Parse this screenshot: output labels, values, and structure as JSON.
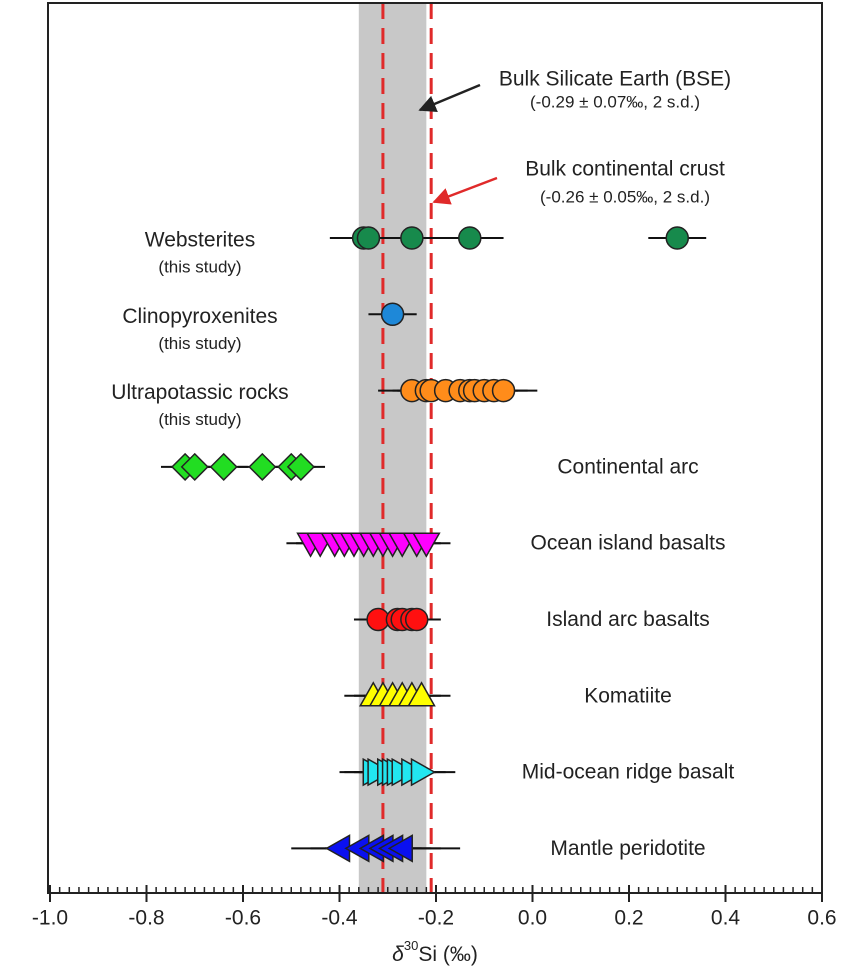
{
  "chart_data": {
    "type": "scatter",
    "x_label": {
      "symbol": "δ",
      "superscript": "30",
      "rest": "Si (‰)"
    },
    "xlim": [
      -1.0,
      0.6
    ],
    "xticks": [
      {
        "value": -1.0,
        "label": "-1.0"
      },
      -0.8,
      -0.6,
      -0.4,
      -0.2,
      {
        "value": 0.0,
        "label": "0.0"
      },
      0.2,
      0.4,
      0.6
    ],
    "reference": [
      {
        "label": "Bulk Silicate Earth (BSE)",
        "detail": "(-0.29 ± 0.07‰, 2 s.d.)",
        "mean": -0.29,
        "two_sd": 0.07,
        "style": "band",
        "color": "#c8c8c8"
      },
      {
        "label": "Bulk continental crust",
        "detail": "(-0.26 ± 0.05‰, 2 s.d.)",
        "mean": -0.26,
        "two_sd": 0.05,
        "style": "dashed",
        "color": "#e02a2a"
      }
    ],
    "series": [
      {
        "name": "Websterites",
        "note": "(this study)",
        "marker": "circle",
        "color": "#178a4c",
        "values": [
          -0.35,
          -0.34,
          -0.25,
          -0.13,
          0.3
        ],
        "errors": [
          0.07,
          0.07,
          0.07,
          0.07,
          0.06
        ]
      },
      {
        "name": "Clinopyroxenites",
        "note": "(this study)",
        "marker": "circle",
        "color": "#1e88d8",
        "values": [
          -0.29
        ],
        "errors": [
          0.05
        ]
      },
      {
        "name": "Ultrapotassic rocks",
        "note": "(this study)",
        "marker": "circle",
        "color": "#ff8c1a",
        "values": [
          -0.25,
          -0.22,
          -0.21,
          -0.18,
          -0.15,
          -0.13,
          -0.12,
          -0.1,
          -0.08,
          -0.06
        ],
        "errors": [
          0.07,
          0.07,
          0.07,
          0.07,
          0.07,
          0.07,
          0.07,
          0.07,
          0.07,
          0.07
        ]
      },
      {
        "name": "Continental arc",
        "marker": "diamond",
        "color": "#22dd22",
        "values": [
          -0.72,
          -0.7,
          -0.64,
          -0.56,
          -0.5,
          -0.48
        ],
        "errors": [
          0.05,
          0.05,
          0.05,
          0.05,
          0.05,
          0.05
        ]
      },
      {
        "name": "Ocean island basalts",
        "marker": "triangle-down",
        "color": "#ff00ff",
        "values": [
          -0.46,
          -0.44,
          -0.41,
          -0.39,
          -0.37,
          -0.35,
          -0.33,
          -0.31,
          -0.29,
          -0.27,
          -0.24,
          -0.22
        ],
        "errors": [
          0.05,
          0.05,
          0.05,
          0.05,
          0.05,
          0.05,
          0.05,
          0.05,
          0.05,
          0.05,
          0.05,
          0.05
        ]
      },
      {
        "name": "Island arc basalts",
        "marker": "circle",
        "color": "#ff1010",
        "values": [
          -0.32,
          -0.28,
          -0.27,
          -0.25,
          -0.24
        ],
        "errors": [
          0.05,
          0.05,
          0.05,
          0.05,
          0.05
        ]
      },
      {
        "name": "Komatiite",
        "marker": "triangle-up",
        "color": "#ffff00",
        "values": [
          -0.33,
          -0.31,
          -0.29,
          -0.27,
          -0.25,
          -0.23
        ],
        "errors": [
          0.06,
          0.06,
          0.06,
          0.06,
          0.06,
          0.06
        ]
      },
      {
        "name": "Mid-ocean ridge basalt",
        "marker": "triangle-right",
        "color": "#22e6f0",
        "values": [
          -0.33,
          -0.32,
          -0.3,
          -0.29,
          -0.28,
          -0.27,
          -0.25,
          -0.23
        ],
        "errors": [
          0.07,
          0.07,
          0.07,
          0.07,
          0.07,
          0.07,
          0.07,
          0.07
        ]
      },
      {
        "name": "Mantle peridotite",
        "marker": "triangle-left",
        "color": "#0a10f0",
        "values": [
          -0.4,
          -0.36,
          -0.33,
          -0.31,
          -0.29,
          -0.27
        ],
        "errors": [
          0.1,
          0.1,
          0.1,
          0.1,
          0.1,
          0.12
        ]
      }
    ]
  }
}
